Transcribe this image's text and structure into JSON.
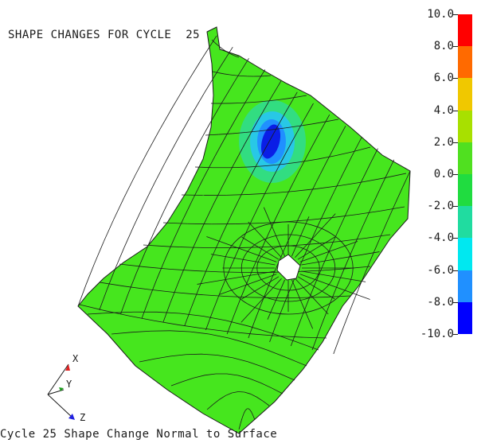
{
  "window": {
    "title": "SHAPE CHANGES FOR CYCLE  25",
    "caption": "Cycle 25 Shape Change Normal to Surface"
  },
  "legend": {
    "labels": [
      "10.0",
      "8.0",
      "6.0",
      "4.0",
      "2.0",
      "0.0",
      "-2.0",
      "-4.0",
      "-6.0",
      "-8.0",
      "-10.0"
    ],
    "colors": [
      "#ff0000",
      "#ff6a00",
      "#f0c800",
      "#a8e000",
      "#50e020",
      "#20dc40",
      "#20dca0",
      "#00e8f0",
      "#2090ff",
      "#0000ff"
    ]
  },
  "triad": {
    "x_label": "X",
    "y_label": "Y",
    "z_label": "Z",
    "x_color": "#e02020",
    "y_color": "#20a020",
    "z_color": "#2020e0"
  },
  "mesh": {
    "fill_color": "#46e61e",
    "line_color": "#1a1a1a",
    "blue_spot_color": "#0a1ee6",
    "cyan_ring_color": "#28c8e6",
    "teal_ring_color": "#30dc8c"
  }
}
